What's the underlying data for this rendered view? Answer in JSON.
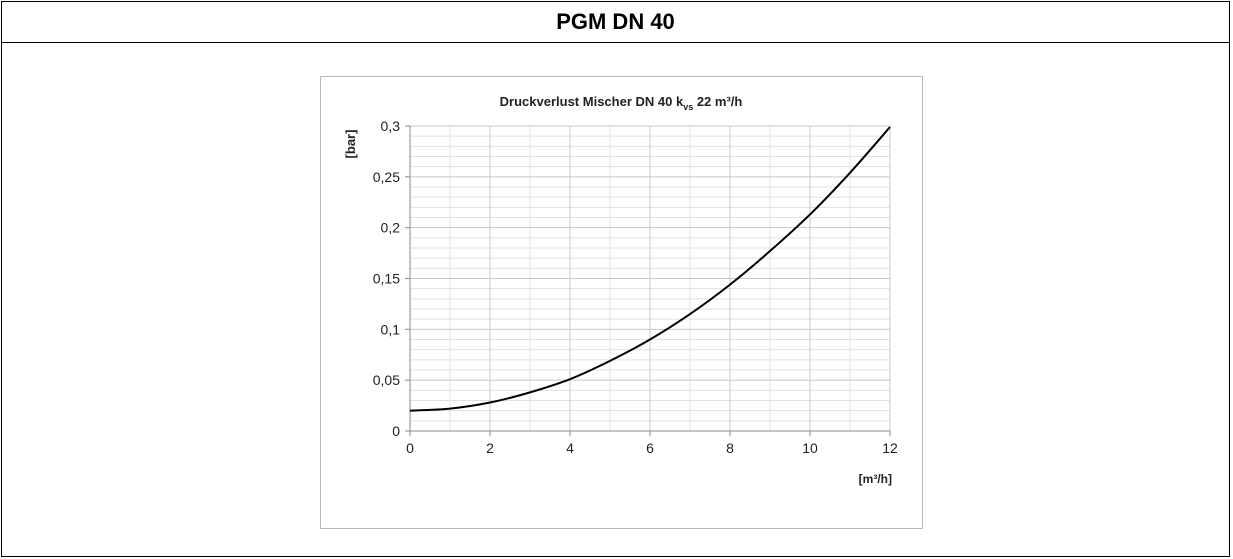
{
  "header": {
    "title": "PGM DN 40"
  },
  "chart_data": {
    "type": "line",
    "title_main": "Druckverlust Mischer DN 40 k",
    "title_sub": "vs",
    "title_tail": " 22 m³/h",
    "xlabel": "[m³/h]",
    "ylabel": "[bar]",
    "xlim": [
      0,
      12
    ],
    "ylim": [
      0,
      0.3
    ],
    "x_ticks": [
      "0",
      "2",
      "4",
      "6",
      "8",
      "10",
      "12"
    ],
    "y_ticks": [
      "0",
      "0,05",
      "0,1",
      "0,15",
      "0,2",
      "0,25",
      "0,3"
    ],
    "grid": true,
    "series": [
      {
        "x": [
          0,
          1,
          2,
          3,
          4,
          5,
          6,
          7,
          8,
          9,
          10,
          11,
          12
        ],
        "values": [
          0.02,
          0.022,
          0.028,
          0.038,
          0.051,
          0.069,
          0.09,
          0.115,
          0.144,
          0.177,
          0.213,
          0.254,
          0.299
        ]
      }
    ],
    "colors": {
      "line": "#000000",
      "grid_major": "#c8c8c8",
      "grid_minor": "#e0e0e0"
    }
  }
}
